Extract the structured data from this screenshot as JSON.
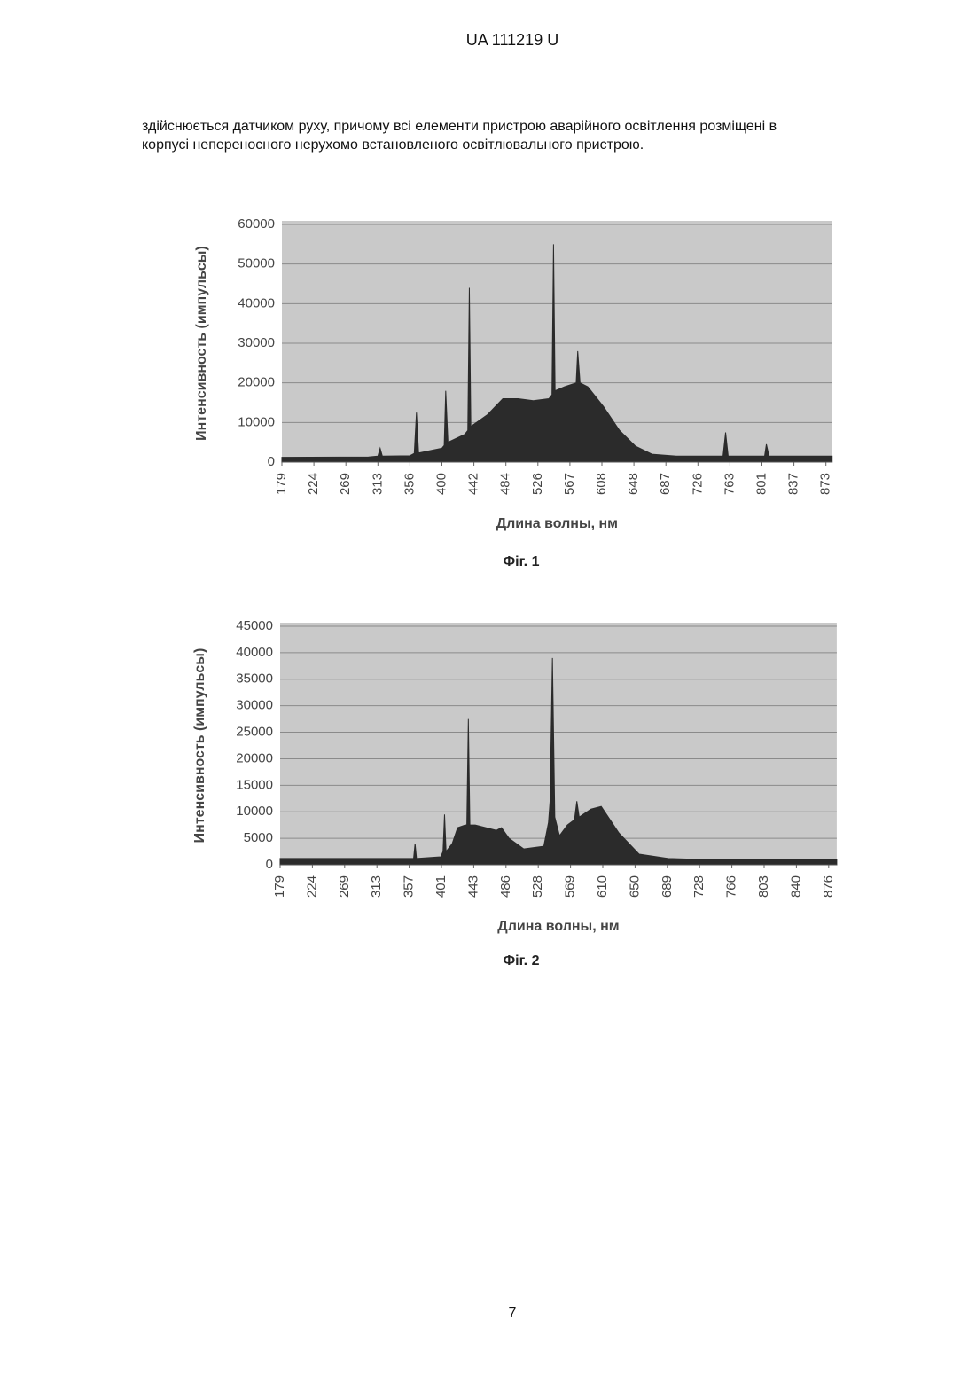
{
  "header": "UA   111219   U",
  "text_lines": [
    "здійснюється датчиком руху, причому всі елементи пристрою аварійного освітлення розміщені в",
    "корпусі непереносного нерухомо встановленого освітлювального пристрою."
  ],
  "page_number": "7",
  "chart_data": [
    {
      "type": "area",
      "caption": "Фіг. 1",
      "x_label": "Длина волны, нм",
      "y_label": "Интенсивность (импульсы)",
      "color": "#2b2b2b",
      "grid": true,
      "x": [
        179,
        300,
        313,
        316,
        319,
        356,
        362,
        365,
        368,
        400,
        403,
        405,
        408,
        430,
        434,
        436,
        438,
        460,
        480,
        500,
        520,
        540,
        544,
        546,
        548,
        560,
        575,
        577,
        580,
        590,
        610,
        630,
        650,
        670,
        700,
        740,
        755,
        758,
        761,
        790,
        804,
        806,
        809,
        880
      ],
      "values": [
        1200,
        1300,
        1500,
        3500,
        1500,
        1600,
        2200,
        12500,
        2300,
        3500,
        4200,
        18000,
        5000,
        7000,
        8000,
        44000,
        9000,
        12000,
        16000,
        16000,
        15500,
        16000,
        17000,
        55000,
        18000,
        19000,
        20000,
        28000,
        20000,
        19000,
        14000,
        8000,
        4000,
        2000,
        1500,
        1500,
        1500,
        7500,
        1500,
        1500,
        1500,
        4500,
        1500,
        1500
      ],
      "xlim": [
        179,
        880
      ],
      "ylim": [
        0,
        60000
      ],
      "xticks": [
        179,
        224,
        269,
        313,
        356,
        400,
        442,
        484,
        526,
        567,
        608,
        648,
        687,
        726,
        763,
        801,
        837,
        873
      ],
      "yticks": [
        0,
        10000,
        20000,
        30000,
        40000,
        50000,
        60000
      ]
    },
    {
      "type": "area",
      "caption": "Фіг. 2",
      "x_label": "Длина волны, нм",
      "y_label": "Интенсивность (импульсы)",
      "color": "#2b2b2b",
      "grid": true,
      "x": [
        179,
        360,
        363,
        365,
        367,
        400,
        403,
        405,
        407,
        415,
        422,
        432,
        434,
        436,
        438,
        445,
        473,
        480,
        490,
        509,
        535,
        541,
        543,
        546,
        549,
        555,
        565,
        574,
        577,
        580,
        595,
        608,
        630,
        655,
        690,
        730,
        885
      ],
      "values": [
        1200,
        1200,
        1200,
        4000,
        1200,
        1500,
        2500,
        9500,
        2500,
        4000,
        7000,
        7500,
        7500,
        27500,
        7500,
        7500,
        6500,
        7000,
        5000,
        3000,
        3500,
        8000,
        12000,
        39000,
        9000,
        5500,
        7500,
        8500,
        12000,
        9000,
        10500,
        11000,
        6000,
        2000,
        1200,
        1000,
        1000
      ],
      "xlim": [
        179,
        885
      ],
      "ylim": [
        0,
        45000
      ],
      "xticks": [
        179,
        224,
        269,
        313,
        357,
        401,
        443,
        486,
        528,
        569,
        610,
        650,
        689,
        728,
        766,
        803,
        840,
        876
      ],
      "yticks": [
        0,
        5000,
        10000,
        15000,
        20000,
        25000,
        30000,
        35000,
        40000,
        45000
      ]
    }
  ]
}
